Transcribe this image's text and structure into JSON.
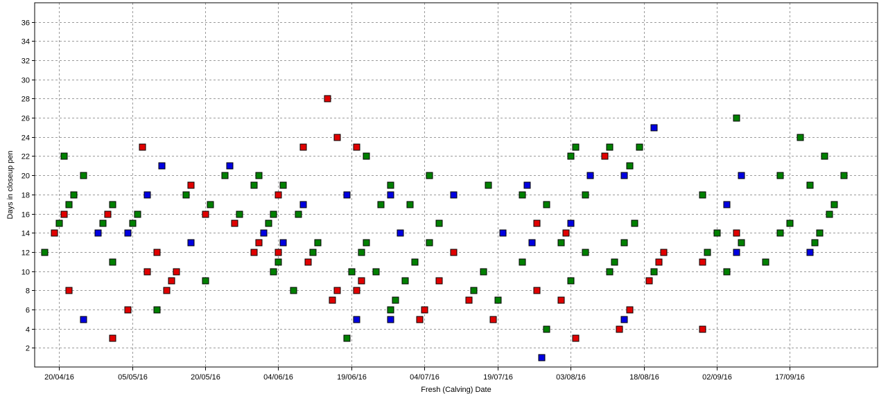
{
  "chart_data": {
    "type": "scatter",
    "xlabel": "Fresh (Calving) Date",
    "ylabel": "Days in closeup pen",
    "x_is_date": true,
    "xlim": [
      "2016-04-15",
      "2016-10-05"
    ],
    "ylim": [
      0,
      38
    ],
    "x_ticks": [
      "20/04/16",
      "05/05/16",
      "20/05/16",
      "04/06/16",
      "19/06/16",
      "04/07/16",
      "19/07/16",
      "03/08/16",
      "18/08/16",
      "02/09/16",
      "17/09/16"
    ],
    "x_tick_dates": [
      "2016-04-20",
      "2016-05-05",
      "2016-05-20",
      "2016-06-04",
      "2016-06-19",
      "2016-07-04",
      "2016-07-19",
      "2016-08-03",
      "2016-08-18",
      "2016-09-02",
      "2016-09-17"
    ],
    "y_ticks": [
      2,
      4,
      6,
      8,
      10,
      12,
      14,
      16,
      18,
      20,
      22,
      24,
      26,
      28,
      30,
      32,
      34,
      36
    ],
    "grid": true,
    "legend": "none",
    "series": [
      {
        "color": "#e00000",
        "points": [
          [
            "2016-04-19",
            14
          ],
          [
            "2016-04-21",
            16
          ],
          [
            "2016-04-22",
            8
          ],
          [
            "2016-04-30",
            16
          ],
          [
            "2016-05-01",
            3
          ],
          [
            "2016-05-04",
            6
          ],
          [
            "2016-05-07",
            23
          ],
          [
            "2016-05-08",
            10
          ],
          [
            "2016-05-10",
            12
          ],
          [
            "2016-05-12",
            8
          ],
          [
            "2016-05-13",
            9
          ],
          [
            "2016-05-14",
            10
          ],
          [
            "2016-05-17",
            19
          ],
          [
            "2016-05-20",
            16
          ],
          [
            "2016-05-26",
            15
          ],
          [
            "2016-05-30",
            12
          ],
          [
            "2016-05-31",
            13
          ],
          [
            "2016-06-04",
            18
          ],
          [
            "2016-06-04",
            12
          ],
          [
            "2016-06-09",
            23
          ],
          [
            "2016-06-10",
            11
          ],
          [
            "2016-06-14",
            28
          ],
          [
            "2016-06-15",
            7
          ],
          [
            "2016-06-16",
            24
          ],
          [
            "2016-06-16",
            8
          ],
          [
            "2016-06-20",
            8
          ],
          [
            "2016-06-20",
            23
          ],
          [
            "2016-06-21",
            9
          ],
          [
            "2016-07-03",
            5
          ],
          [
            "2016-07-04",
            6
          ],
          [
            "2016-07-07",
            9
          ],
          [
            "2016-07-10",
            12
          ],
          [
            "2016-07-13",
            7
          ],
          [
            "2016-07-18",
            5
          ],
          [
            "2016-07-27",
            15
          ],
          [
            "2016-07-27",
            8
          ],
          [
            "2016-08-01",
            7
          ],
          [
            "2016-08-02",
            14
          ],
          [
            "2016-08-04",
            3
          ],
          [
            "2016-08-10",
            22
          ],
          [
            "2016-08-13",
            4
          ],
          [
            "2016-08-15",
            6
          ],
          [
            "2016-08-19",
            9
          ],
          [
            "2016-08-21",
            11
          ],
          [
            "2016-08-22",
            12
          ],
          [
            "2016-08-30",
            11
          ],
          [
            "2016-08-30",
            4
          ],
          [
            "2016-09-06",
            14
          ]
        ]
      },
      {
        "color": "#008000",
        "points": [
          [
            "2016-04-17",
            12
          ],
          [
            "2016-04-20",
            15
          ],
          [
            "2016-04-21",
            22
          ],
          [
            "2016-04-22",
            17
          ],
          [
            "2016-04-23",
            18
          ],
          [
            "2016-04-25",
            20
          ],
          [
            "2016-04-29",
            15
          ],
          [
            "2016-05-01",
            17
          ],
          [
            "2016-05-01",
            11
          ],
          [
            "2016-05-05",
            15
          ],
          [
            "2016-05-06",
            16
          ],
          [
            "2016-05-10",
            6
          ],
          [
            "2016-05-16",
            18
          ],
          [
            "2016-05-20",
            9
          ],
          [
            "2016-05-21",
            17
          ],
          [
            "2016-05-24",
            20
          ],
          [
            "2016-05-27",
            16
          ],
          [
            "2016-05-30",
            19
          ],
          [
            "2016-05-31",
            20
          ],
          [
            "2016-06-02",
            15
          ],
          [
            "2016-06-03",
            16
          ],
          [
            "2016-06-03",
            10
          ],
          [
            "2016-06-04",
            11
          ],
          [
            "2016-06-05",
            19
          ],
          [
            "2016-06-07",
            8
          ],
          [
            "2016-06-08",
            16
          ],
          [
            "2016-06-11",
            12
          ],
          [
            "2016-06-12",
            13
          ],
          [
            "2016-06-18",
            3
          ],
          [
            "2016-06-19",
            10
          ],
          [
            "2016-06-21",
            12
          ],
          [
            "2016-06-22",
            22
          ],
          [
            "2016-06-22",
            13
          ],
          [
            "2016-06-24",
            10
          ],
          [
            "2016-06-25",
            17
          ],
          [
            "2016-06-27",
            6
          ],
          [
            "2016-06-27",
            19
          ],
          [
            "2016-06-28",
            7
          ],
          [
            "2016-06-30",
            9
          ],
          [
            "2016-07-01",
            17
          ],
          [
            "2016-07-02",
            11
          ],
          [
            "2016-07-05",
            20
          ],
          [
            "2016-07-05",
            13
          ],
          [
            "2016-07-07",
            15
          ],
          [
            "2016-07-14",
            8
          ],
          [
            "2016-07-16",
            10
          ],
          [
            "2016-07-17",
            19
          ],
          [
            "2016-07-19",
            7
          ],
          [
            "2016-07-24",
            18
          ],
          [
            "2016-07-24",
            11
          ],
          [
            "2016-07-29",
            17
          ],
          [
            "2016-07-29",
            4
          ],
          [
            "2016-08-01",
            13
          ],
          [
            "2016-08-03",
            22
          ],
          [
            "2016-08-03",
            9
          ],
          [
            "2016-08-04",
            23
          ],
          [
            "2016-08-06",
            12
          ],
          [
            "2016-08-06",
            18
          ],
          [
            "2016-08-11",
            23
          ],
          [
            "2016-08-11",
            10
          ],
          [
            "2016-08-12",
            11
          ],
          [
            "2016-08-14",
            13
          ],
          [
            "2016-08-15",
            21
          ],
          [
            "2016-08-16",
            15
          ],
          [
            "2016-08-17",
            23
          ],
          [
            "2016-08-20",
            10
          ],
          [
            "2016-08-30",
            18
          ],
          [
            "2016-08-31",
            12
          ],
          [
            "2016-09-02",
            14
          ],
          [
            "2016-09-04",
            10
          ],
          [
            "2016-09-06",
            26
          ],
          [
            "2016-09-07",
            13
          ],
          [
            "2016-09-12",
            11
          ],
          [
            "2016-09-15",
            20
          ],
          [
            "2016-09-15",
            14
          ],
          [
            "2016-09-17",
            15
          ],
          [
            "2016-09-19",
            24
          ],
          [
            "2016-09-21",
            19
          ],
          [
            "2016-09-22",
            13
          ],
          [
            "2016-09-23",
            14
          ],
          [
            "2016-09-24",
            22
          ],
          [
            "2016-09-25",
            16
          ],
          [
            "2016-09-26",
            17
          ],
          [
            "2016-09-28",
            20
          ]
        ]
      },
      {
        "color": "#0000e0",
        "points": [
          [
            "2016-04-25",
            5
          ],
          [
            "2016-04-28",
            14
          ],
          [
            "2016-05-04",
            14
          ],
          [
            "2016-05-08",
            18
          ],
          [
            "2016-05-11",
            21
          ],
          [
            "2016-05-17",
            13
          ],
          [
            "2016-05-25",
            21
          ],
          [
            "2016-06-01",
            14
          ],
          [
            "2016-06-05",
            13
          ],
          [
            "2016-06-09",
            17
          ],
          [
            "2016-06-18",
            18
          ],
          [
            "2016-06-20",
            5
          ],
          [
            "2016-06-27",
            18
          ],
          [
            "2016-06-27",
            5
          ],
          [
            "2016-06-29",
            14
          ],
          [
            "2016-07-10",
            18
          ],
          [
            "2016-07-20",
            14
          ],
          [
            "2016-07-25",
            19
          ],
          [
            "2016-07-26",
            13
          ],
          [
            "2016-07-28",
            1
          ],
          [
            "2016-08-03",
            15
          ],
          [
            "2016-08-07",
            20
          ],
          [
            "2016-08-14",
            20
          ],
          [
            "2016-08-14",
            5
          ],
          [
            "2016-08-20",
            25
          ],
          [
            "2016-09-04",
            17
          ],
          [
            "2016-09-06",
            12
          ],
          [
            "2016-09-07",
            20
          ],
          [
            "2016-09-21",
            12
          ]
        ]
      }
    ]
  }
}
